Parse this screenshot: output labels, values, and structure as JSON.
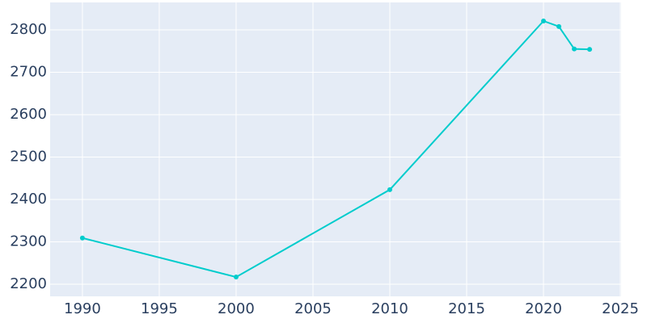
{
  "chart_data": {
    "type": "line",
    "x": [
      1990,
      2000,
      2010,
      2020,
      2021,
      2022,
      2023
    ],
    "series": [
      {
        "color": "#00cccc",
        "values": [
          2309,
          2217,
          2423,
          2821,
          2808,
          2755,
          2754
        ]
      }
    ],
    "xlim": [
      1987.9,
      2025.05
    ],
    "xticks": [
      1990,
      1995,
      2000,
      2005,
      2010,
      2015,
      2020,
      2025
    ],
    "ylim": [
      2171.4,
      2864.8
    ],
    "yticks": [
      2200,
      2300,
      2400,
      2500,
      2600,
      2700,
      2800
    ],
    "grid": true
  }
}
